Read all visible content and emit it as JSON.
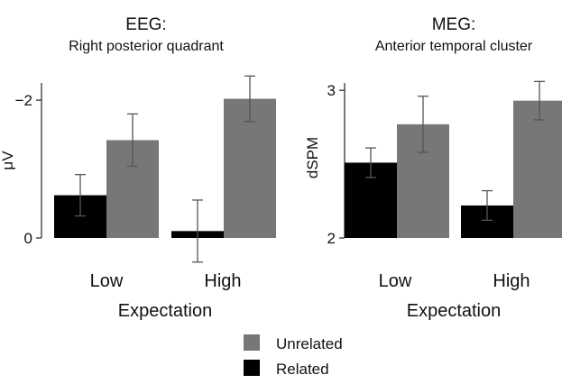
{
  "colors": {
    "unrelated": "#777777",
    "related": "#000000",
    "axis": "#222222",
    "errorbar": "#555555"
  },
  "legend": {
    "items": [
      {
        "label": "Unrelated",
        "color": "#777777"
      },
      {
        "label": "Related",
        "color": "#000000"
      }
    ]
  },
  "chart_data": [
    {
      "type": "bar",
      "title": "EEG:",
      "subtitle": "Right posterior quadrant",
      "ylabel": "μV",
      "xlabel": "Expectation",
      "categories": [
        "Low",
        "High"
      ],
      "ylim": [
        0,
        -2.25
      ],
      "inverted_y": true,
      "yticks": [
        {
          "value": 0,
          "label": "0"
        },
        {
          "value": -2,
          "label": "−2"
        }
      ],
      "series": [
        {
          "name": "Related",
          "values": [
            -0.62,
            -0.1
          ],
          "error": [
            0.3,
            0.45
          ]
        },
        {
          "name": "Unrelated",
          "values": [
            -1.42,
            -2.02
          ],
          "error": [
            0.38,
            0.33
          ]
        }
      ]
    },
    {
      "type": "bar",
      "title": "MEG:",
      "subtitle": "Anterior temporal cluster",
      "ylabel": "dSPM",
      "xlabel": "Expectation",
      "categories": [
        "Low",
        "High"
      ],
      "ylim": [
        2,
        3.05
      ],
      "yticks": [
        {
          "value": 2,
          "label": "2"
        },
        {
          "value": 3,
          "label": "3"
        }
      ],
      "series": [
        {
          "name": "Related",
          "values": [
            2.51,
            2.22
          ],
          "error": [
            0.1,
            0.1
          ]
        },
        {
          "name": "Unrelated",
          "values": [
            2.77,
            2.93
          ],
          "error": [
            0.19,
            0.13
          ]
        }
      ]
    }
  ]
}
